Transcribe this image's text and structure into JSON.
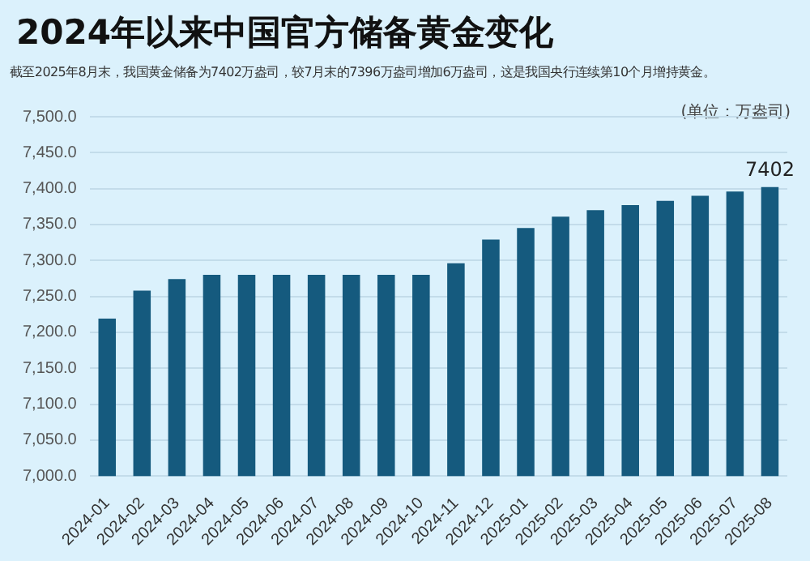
{
  "chart_data": {
    "type": "bar",
    "title": "2024年以来中国官方储备黄金变化",
    "subtitle": "截至2025年8月末，我国黄金储备为7402万盎司，较7月末的7396万盎司增加6万盎司，这是我国央行连续第10个月增持黄金。",
    "ylabel": "(单位：万盎司)",
    "categories": [
      "2024-01",
      "2024-02",
      "2024-03",
      "2024-04",
      "2024-05",
      "2024-06",
      "2024-07",
      "2024-08",
      "2024-09",
      "2024-10",
      "2024-11",
      "2024-12",
      "2025-01",
      "2025-02",
      "2025-03",
      "2025-04",
      "2025-05",
      "2025-06",
      "2025-07",
      "2025-08"
    ],
    "values": [
      7219,
      7258,
      7274,
      7280,
      7280,
      7280,
      7280,
      7280,
      7280,
      7280,
      7296,
      7329,
      7345,
      7361,
      7370,
      7377,
      7383,
      7390,
      7396,
      7402
    ],
    "value_labels": [
      null,
      null,
      null,
      null,
      null,
      null,
      null,
      null,
      null,
      null,
      null,
      null,
      null,
      null,
      null,
      null,
      null,
      null,
      null,
      "7402"
    ],
    "color": "#155a7e",
    "ylim": [
      7000,
      7500
    ],
    "yticks": [
      {
        "value": 7000,
        "label": "7,000.0"
      },
      {
        "value": 7050,
        "label": "7,050.0"
      },
      {
        "value": 7100,
        "label": "7,100.0"
      },
      {
        "value": 7150,
        "label": "7,150.0"
      },
      {
        "value": 7200,
        "label": "7,200.0"
      },
      {
        "value": 7250,
        "label": "7,250.0"
      },
      {
        "value": 7300,
        "label": "7,300.0"
      },
      {
        "value": 7350,
        "label": "7,350.0"
      },
      {
        "value": 7400,
        "label": "7,400.0"
      },
      {
        "value": 7450,
        "label": "7,450.0"
      },
      {
        "value": 7500,
        "label": "7,500.0"
      }
    ],
    "grid": "y",
    "legend": false
  }
}
